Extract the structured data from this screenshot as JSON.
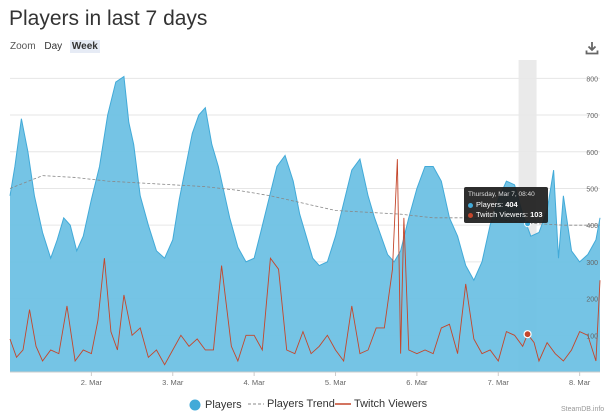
{
  "header": {
    "title": "Players in last 7 days"
  },
  "zoom": {
    "label": "Zoom",
    "options": [
      "Day",
      "Week"
    ],
    "selected": "Week"
  },
  "colors": {
    "players": "#42aad8",
    "players_fill": "#6ec1e4",
    "trend": "#888888",
    "twitch": "#c4462b",
    "grid": "#e6e6e6",
    "highlight": "#e8e8e8"
  },
  "tooltip": {
    "date": "Thursday, Mar 7, 08:40",
    "players_label": "Players:",
    "players_value": "404",
    "twitch_label": "Twitch Viewers:",
    "twitch_value": "103"
  },
  "credit": "SteamDB.info",
  "chart_data": {
    "type": "area",
    "title": "Players in last 7 days",
    "x_unit": "days since Mar 1 00:00",
    "xlim": [
      1.0,
      8.25
    ],
    "ylim": [
      0,
      850
    ],
    "y_ticks": [
      0,
      100,
      200,
      300,
      400,
      500,
      600,
      700,
      800
    ],
    "x_ticks": [
      {
        "label": "2. Mar",
        "value": 2.0
      },
      {
        "label": "3. Mar",
        "value": 3.0
      },
      {
        "label": "4. Mar",
        "value": 4.0
      },
      {
        "label": "5. Mar",
        "value": 5.0
      },
      {
        "label": "6. Mar",
        "value": 6.0
      },
      {
        "label": "7. Mar",
        "value": 7.0
      },
      {
        "label": "8. Mar",
        "value": 8.0
      }
    ],
    "highlight_x": 7.36,
    "series": [
      {
        "name": "Players",
        "type": "area",
        "x": [
          1.0,
          1.06,
          1.14,
          1.22,
          1.3,
          1.4,
          1.5,
          1.58,
          1.66,
          1.74,
          1.82,
          1.9,
          2.0,
          2.1,
          2.2,
          2.3,
          2.4,
          2.46,
          2.52,
          2.6,
          2.7,
          2.8,
          2.9,
          3.0,
          3.08,
          3.16,
          3.24,
          3.32,
          3.4,
          3.48,
          3.56,
          3.64,
          3.7,
          3.8,
          3.9,
          4.0,
          4.08,
          4.18,
          4.28,
          4.38,
          4.48,
          4.56,
          4.64,
          4.72,
          4.8,
          4.9,
          5.0,
          5.1,
          5.2,
          5.3,
          5.4,
          5.48,
          5.56,
          5.64,
          5.72,
          5.8,
          5.9,
          6.0,
          6.1,
          6.2,
          6.3,
          6.4,
          6.5,
          6.6,
          6.7,
          6.8,
          6.9,
          7.0,
          7.1,
          7.2,
          7.3,
          7.4,
          7.5,
          7.6,
          7.68,
          7.74,
          7.8,
          7.9,
          8.0,
          8.1,
          8.2,
          8.25
        ],
        "y": [
          480,
          560,
          690,
          600,
          480,
          380,
          310,
          360,
          420,
          400,
          330,
          370,
          470,
          560,
          700,
          790,
          805,
          680,
          620,
          480,
          400,
          330,
          310,
          360,
          470,
          560,
          650,
          700,
          720,
          620,
          560,
          480,
          420,
          340,
          300,
          310,
          380,
          470,
          560,
          590,
          520,
          430,
          370,
          310,
          290,
          300,
          370,
          460,
          550,
          580,
          480,
          420,
          370,
          320,
          300,
          330,
          420,
          500,
          560,
          560,
          520,
          420,
          370,
          290,
          250,
          300,
          400,
          470,
          520,
          510,
          430,
          370,
          380,
          440,
          550,
          310,
          480,
          330,
          300,
          320,
          360,
          420
        ]
      },
      {
        "name": "Players Trend",
        "type": "dashed-line",
        "x": [
          1.0,
          1.4,
          1.8,
          2.2,
          2.6,
          3.0,
          3.4,
          3.8,
          4.2,
          4.6,
          5.0,
          5.4,
          5.8,
          6.2,
          6.6,
          7.0,
          7.4,
          7.8,
          8.25
        ],
        "y": [
          500,
          535,
          530,
          520,
          515,
          510,
          505,
          495,
          480,
          460,
          440,
          435,
          430,
          420,
          420,
          415,
          405,
          400,
          400
        ]
      },
      {
        "name": "Twitch Viewers",
        "type": "line",
        "x": [
          1.0,
          1.08,
          1.16,
          1.24,
          1.32,
          1.4,
          1.5,
          1.6,
          1.7,
          1.8,
          1.9,
          2.0,
          2.08,
          2.16,
          2.24,
          2.32,
          2.4,
          2.5,
          2.6,
          2.7,
          2.8,
          2.9,
          3.0,
          3.1,
          3.2,
          3.3,
          3.4,
          3.5,
          3.6,
          3.66,
          3.72,
          3.8,
          3.9,
          4.0,
          4.1,
          4.2,
          4.3,
          4.4,
          4.5,
          4.6,
          4.7,
          4.8,
          4.9,
          5.0,
          5.1,
          5.2,
          5.3,
          5.4,
          5.5,
          5.6,
          5.7,
          5.76,
          5.8,
          5.84,
          5.9,
          6.0,
          6.1,
          6.2,
          6.3,
          6.4,
          6.5,
          6.6,
          6.7,
          6.8,
          6.9,
          7.0,
          7.1,
          7.2,
          7.3,
          7.36,
          7.44,
          7.5,
          7.6,
          7.7,
          7.8,
          7.9,
          8.0,
          8.1,
          8.2,
          8.25
        ],
        "y": [
          90,
          40,
          60,
          170,
          70,
          30,
          60,
          50,
          180,
          30,
          60,
          50,
          140,
          310,
          110,
          60,
          210,
          100,
          120,
          40,
          60,
          20,
          60,
          100,
          70,
          90,
          60,
          60,
          290,
          180,
          70,
          30,
          100,
          100,
          60,
          310,
          280,
          60,
          50,
          110,
          50,
          70,
          100,
          60,
          30,
          180,
          50,
          60,
          120,
          120,
          280,
          580,
          50,
          420,
          60,
          50,
          60,
          50,
          120,
          130,
          50,
          240,
          90,
          50,
          60,
          30,
          110,
          100,
          70,
          103,
          80,
          30,
          80,
          50,
          30,
          60,
          110,
          100,
          30,
          250
        ]
      }
    ]
  },
  "legend": [
    {
      "name": "Players",
      "symbol": "dot"
    },
    {
      "name": "Players Trend",
      "symbol": "dashed"
    },
    {
      "name": "Twitch Viewers",
      "symbol": "line"
    }
  ]
}
